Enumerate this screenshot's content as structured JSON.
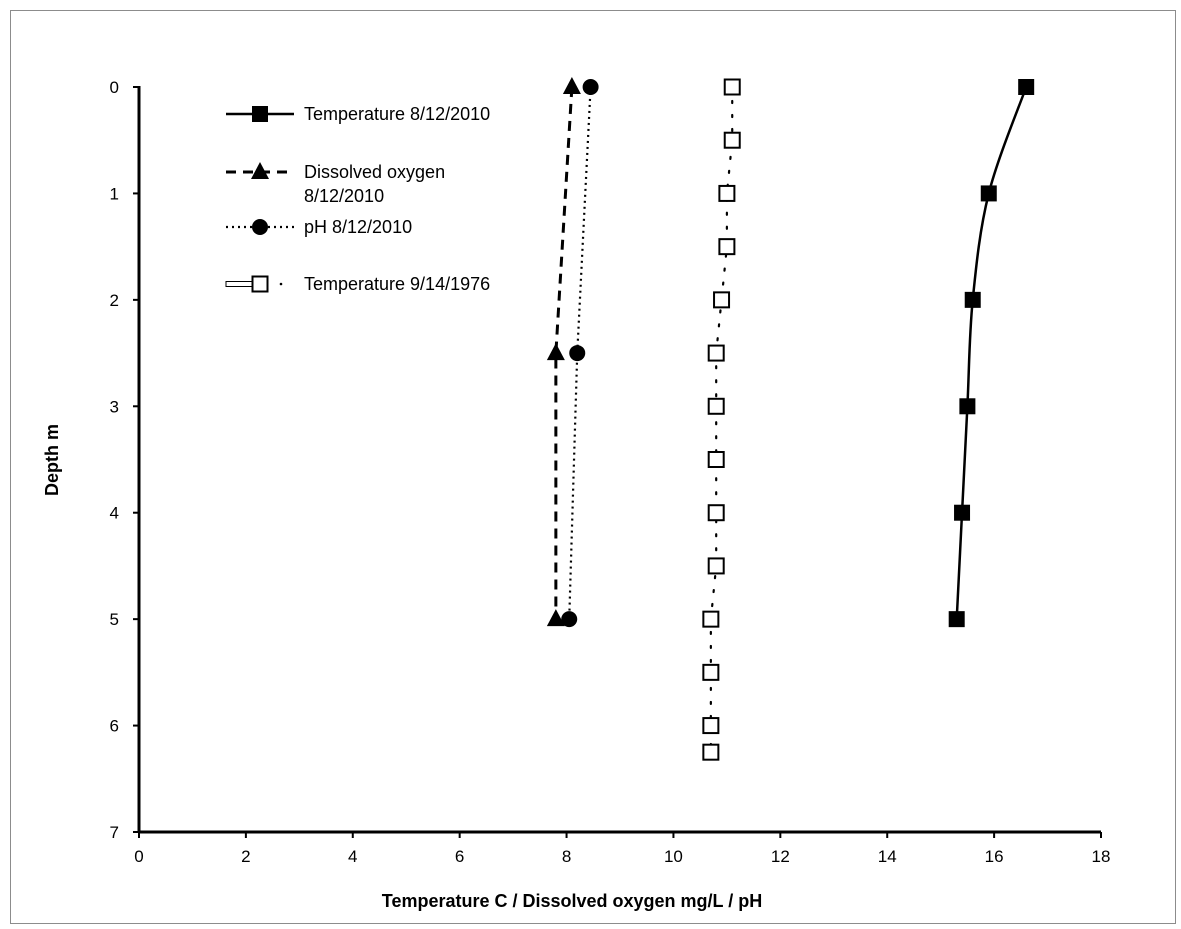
{
  "chart_data": {
    "type": "line",
    "title": "",
    "xlabel": "Temperature C / Dissolved oxygen mg/L / pH",
    "ylabel": "Depth m",
    "xlim": [
      0,
      18
    ],
    "ylim": [
      0,
      7
    ],
    "y_inverted": true,
    "x_ticks": [
      0,
      2,
      4,
      6,
      8,
      10,
      12,
      14,
      16,
      18
    ],
    "y_ticks": [
      0,
      1,
      2,
      3,
      4,
      5,
      6,
      7
    ],
    "grid": false,
    "legend_position": "top-left",
    "series": [
      {
        "name": "Temperature 8/12/2010",
        "marker": "filled-square",
        "line": "solid",
        "color": "#000000",
        "points": [
          [
            16.6,
            0
          ],
          [
            15.9,
            1
          ],
          [
            15.6,
            2
          ],
          [
            15.5,
            3
          ],
          [
            15.4,
            4
          ],
          [
            15.3,
            5
          ]
        ]
      },
      {
        "name": "Dissolved oxygen 8/12/2010",
        "legend_lines": [
          "Dissolved oxygen",
          "8/12/2010"
        ],
        "marker": "filled-triangle",
        "line": "dashed",
        "color": "#000000",
        "points": [
          [
            8.1,
            0
          ],
          [
            7.8,
            2.5
          ],
          [
            7.8,
            5
          ]
        ]
      },
      {
        "name": "pH 8/12/2010",
        "marker": "filled-circle",
        "line": "dotted",
        "color": "#000000",
        "points": [
          [
            8.45,
            0
          ],
          [
            8.2,
            2.5
          ],
          [
            8.05,
            5
          ]
        ]
      },
      {
        "name": "Temperature 9/14/1976",
        "marker": "open-square",
        "line": "sparse-dotted",
        "color": "#000000",
        "points": [
          [
            11.1,
            0
          ],
          [
            11.1,
            0.5
          ],
          [
            11.0,
            1
          ],
          [
            11.0,
            1.5
          ],
          [
            10.9,
            2
          ],
          [
            10.8,
            2.5
          ],
          [
            10.8,
            3
          ],
          [
            10.8,
            3.5
          ],
          [
            10.8,
            4
          ],
          [
            10.8,
            4.5
          ],
          [
            10.7,
            5
          ],
          [
            10.7,
            5.5
          ],
          [
            10.7,
            6
          ],
          [
            10.7,
            6.25
          ]
        ]
      }
    ]
  }
}
